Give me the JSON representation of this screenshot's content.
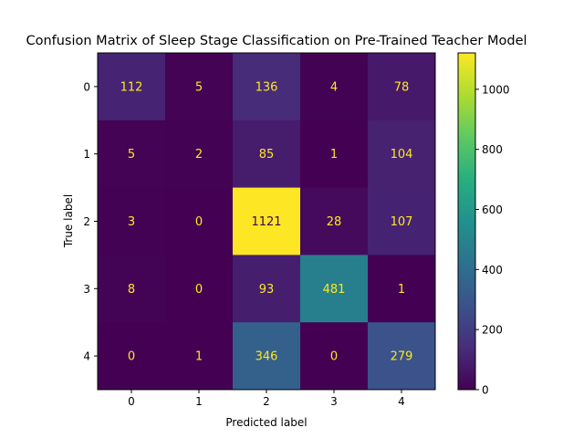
{
  "chart_data": {
    "type": "heatmap",
    "title": "Confusion Matrix of Sleep Stage Classification on Pre-Trained Teacher Model",
    "xlabel": "Predicted label",
    "ylabel": "True label",
    "x_categories": [
      "0",
      "1",
      "2",
      "3",
      "4"
    ],
    "y_categories": [
      "0",
      "1",
      "2",
      "3",
      "4"
    ],
    "values": [
      [
        112,
        5,
        136,
        4,
        78
      ],
      [
        5,
        2,
        85,
        1,
        104
      ],
      [
        3,
        0,
        1121,
        28,
        107
      ],
      [
        8,
        0,
        93,
        481,
        1
      ],
      [
        0,
        1,
        346,
        0,
        279
      ]
    ],
    "colormap": "viridis",
    "color_range": [
      0,
      1121
    ],
    "colorbar_ticks": [
      0,
      200,
      400,
      600,
      800,
      1000
    ],
    "text_color_dark_cells": "#fde725",
    "text_color_bright_cells": "#440154"
  }
}
